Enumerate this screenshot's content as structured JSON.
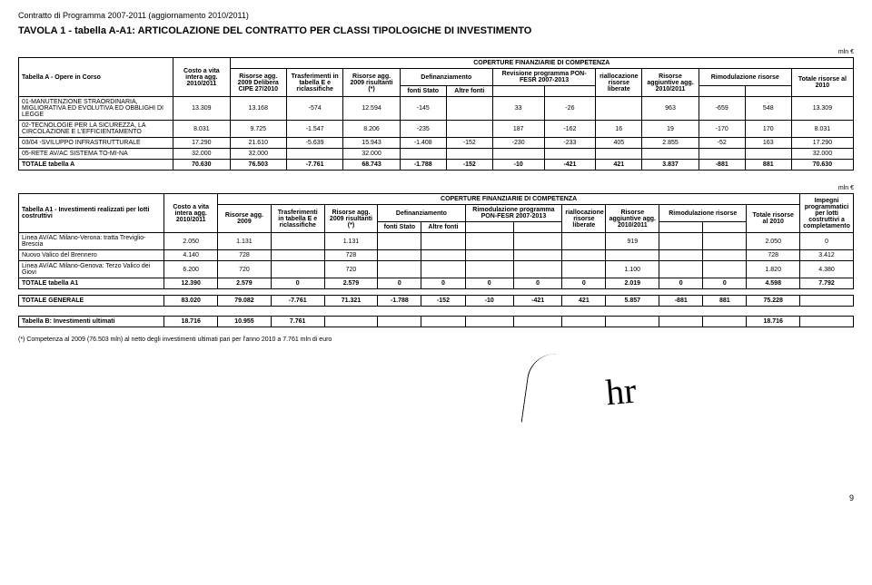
{
  "header": "Contratto di Programma 2007-2011 (aggiornamento 2010/2011)",
  "title": "TAVOLA 1 - tabella A-A1: ARTICOLAZIONE DEL CONTRATTO PER CLASSI TIPOLOGICHE DI INVESTIMENTO",
  "unit_label": "mln €",
  "tableA": {
    "caption": "Tabella A - Opere in Corso",
    "group_header": "COPERTURE FINANZIARIE DI COMPETENZA",
    "cols": {
      "c1": "Costo a vita intera agg. 2010/2011",
      "c2": "Risorse agg. 2009 Delibera CIPE 27/2010",
      "c3": "Trasferimenti in tabella E e riclassifiche",
      "c4": "Risorse agg. 2009 risultanti (*)",
      "c5a": "Definanziamento",
      "c5a1": "fonti Stato",
      "c5a2": "Altre fonti",
      "c6": "Revisione programma PON-FESR 2007-2013",
      "c6a": "riallocazione risorse liberate",
      "c7": "Risorse aggiuntive agg. 2010/2011",
      "c8": "Rimodulazione risorse",
      "c10": "Totale risorse al 2010"
    },
    "rows": [
      {
        "label": "01-MANUTENZIONE STRAORDINARIA, MIGLIORATIVA ED EVOLUTIVA ED OBBLIGHI DI LEGGE",
        "v": [
          "13.309",
          "13.168",
          "-574",
          "12.594",
          "-145",
          "",
          "33",
          "-26",
          "",
          "963",
          "-659",
          "548",
          "13.309"
        ]
      },
      {
        "label": "02-TECNOLOGIE PER LA SICUREZZA, LA CIRCOLAZIONE E L'EFFICIENTAMENTO",
        "v": [
          "8.031",
          "9.725",
          "-1.547",
          "8.206",
          "-235",
          "",
          "187",
          "-162",
          "16",
          "19",
          "-170",
          "170",
          "8.031"
        ]
      },
      {
        "label": "03/04 -SVILUPPO INFRASTRUTTURALE",
        "v": [
          "17.290",
          "21.610",
          "-5.639",
          "15.943",
          "-1.408",
          "-152",
          "-230",
          "-233",
          "405",
          "2.855",
          "-52",
          "163",
          "17.290"
        ]
      },
      {
        "label": "05-RETE AV/AC SISTEMA TO-MI-NA",
        "v": [
          "32.000",
          "32.000",
          "",
          "32.000",
          "",
          "",
          "",
          "",
          "",
          "",
          "",
          "",
          "32.000"
        ]
      }
    ],
    "total": {
      "label": "TOTALE tabella A",
      "v": [
        "70.630",
        "76.503",
        "-7.761",
        "68.743",
        "-1.788",
        "-152",
        "-10",
        "-421",
        "421",
        "3.837",
        "-881",
        "881",
        "70.630"
      ]
    }
  },
  "tableA1": {
    "caption": "Tabella A1 - Investimenti realizzati per lotti costruttivi",
    "group_header": "COPERTURE FINANZIARIE DI COMPETENZA",
    "cols": {
      "c1": "Costo a vita intera agg. 2010/2011",
      "c2": "Risorse agg. 2009",
      "c3": "Trasferimenti in tabella E e riclassifiche",
      "c4": "Risorse agg. 2009 risultanti (*)",
      "c5a": "Definanziamento",
      "c5a1": "fonti Stato",
      "c5a2": "Altre fonti",
      "c6": "Rimodulazione programma PON-FESR 2007-2013",
      "c6a": "riallocazione risorse liberate",
      "c7": "Risorse aggiuntive agg. 2010/2011",
      "c8": "Rimodulazione risorse",
      "c10": "Totale risorse al 2010",
      "c11": "Impegni programmatici per lotti costruttivi a completamento"
    },
    "rows": [
      {
        "label": "Linea AV/AC Milano-Verona: tratta Treviglio-Brescia",
        "v": [
          "2.050",
          "1.131",
          "",
          "1.131",
          "",
          "",
          "",
          "",
          "",
          "919",
          "",
          "",
          "2.050",
          "0"
        ]
      },
      {
        "label": "Nuovo Valico del Brennero",
        "v": [
          "4.140",
          "728",
          "",
          "728",
          "",
          "",
          "",
          "",
          "",
          "",
          "",
          "",
          "728",
          "3.412"
        ]
      },
      {
        "label": "Linea AV/AC Milano-Genova: Terzo Valico dei Giovi",
        "v": [
          "6.200",
          "720",
          "",
          "720",
          "",
          "",
          "",
          "",
          "",
          "1.100",
          "",
          "",
          "1.820",
          "4.380"
        ]
      }
    ],
    "total": {
      "label": "TOTALE tabella A1",
      "v": [
        "12.390",
        "2.579",
        "0",
        "2.579",
        "0",
        "0",
        "0",
        "0",
        "0",
        "2.019",
        "0",
        "0",
        "4.598",
        "7.792"
      ]
    }
  },
  "grand_total": {
    "label": "TOTALE GENERALE",
    "v": [
      "83.020",
      "79.082",
      "-7.761",
      "71.321",
      "-1.788",
      "-152",
      "-10",
      "-421",
      "421",
      "5.857",
      "-881",
      "881",
      "75.228",
      ""
    ]
  },
  "tabB": {
    "label": "Tabella B: Investimenti ultimati",
    "v": [
      "18.716",
      "10.955",
      "7.761",
      "",
      "",
      "",
      "",
      "",
      "",
      "",
      "",
      "",
      "18.716",
      ""
    ]
  },
  "footnote": "(*) Competenza al 2009 (76.503 mln) al netto degli investimenti ultimati pari per l'anno 2010 a 7.761 mln di euro",
  "page": "9"
}
